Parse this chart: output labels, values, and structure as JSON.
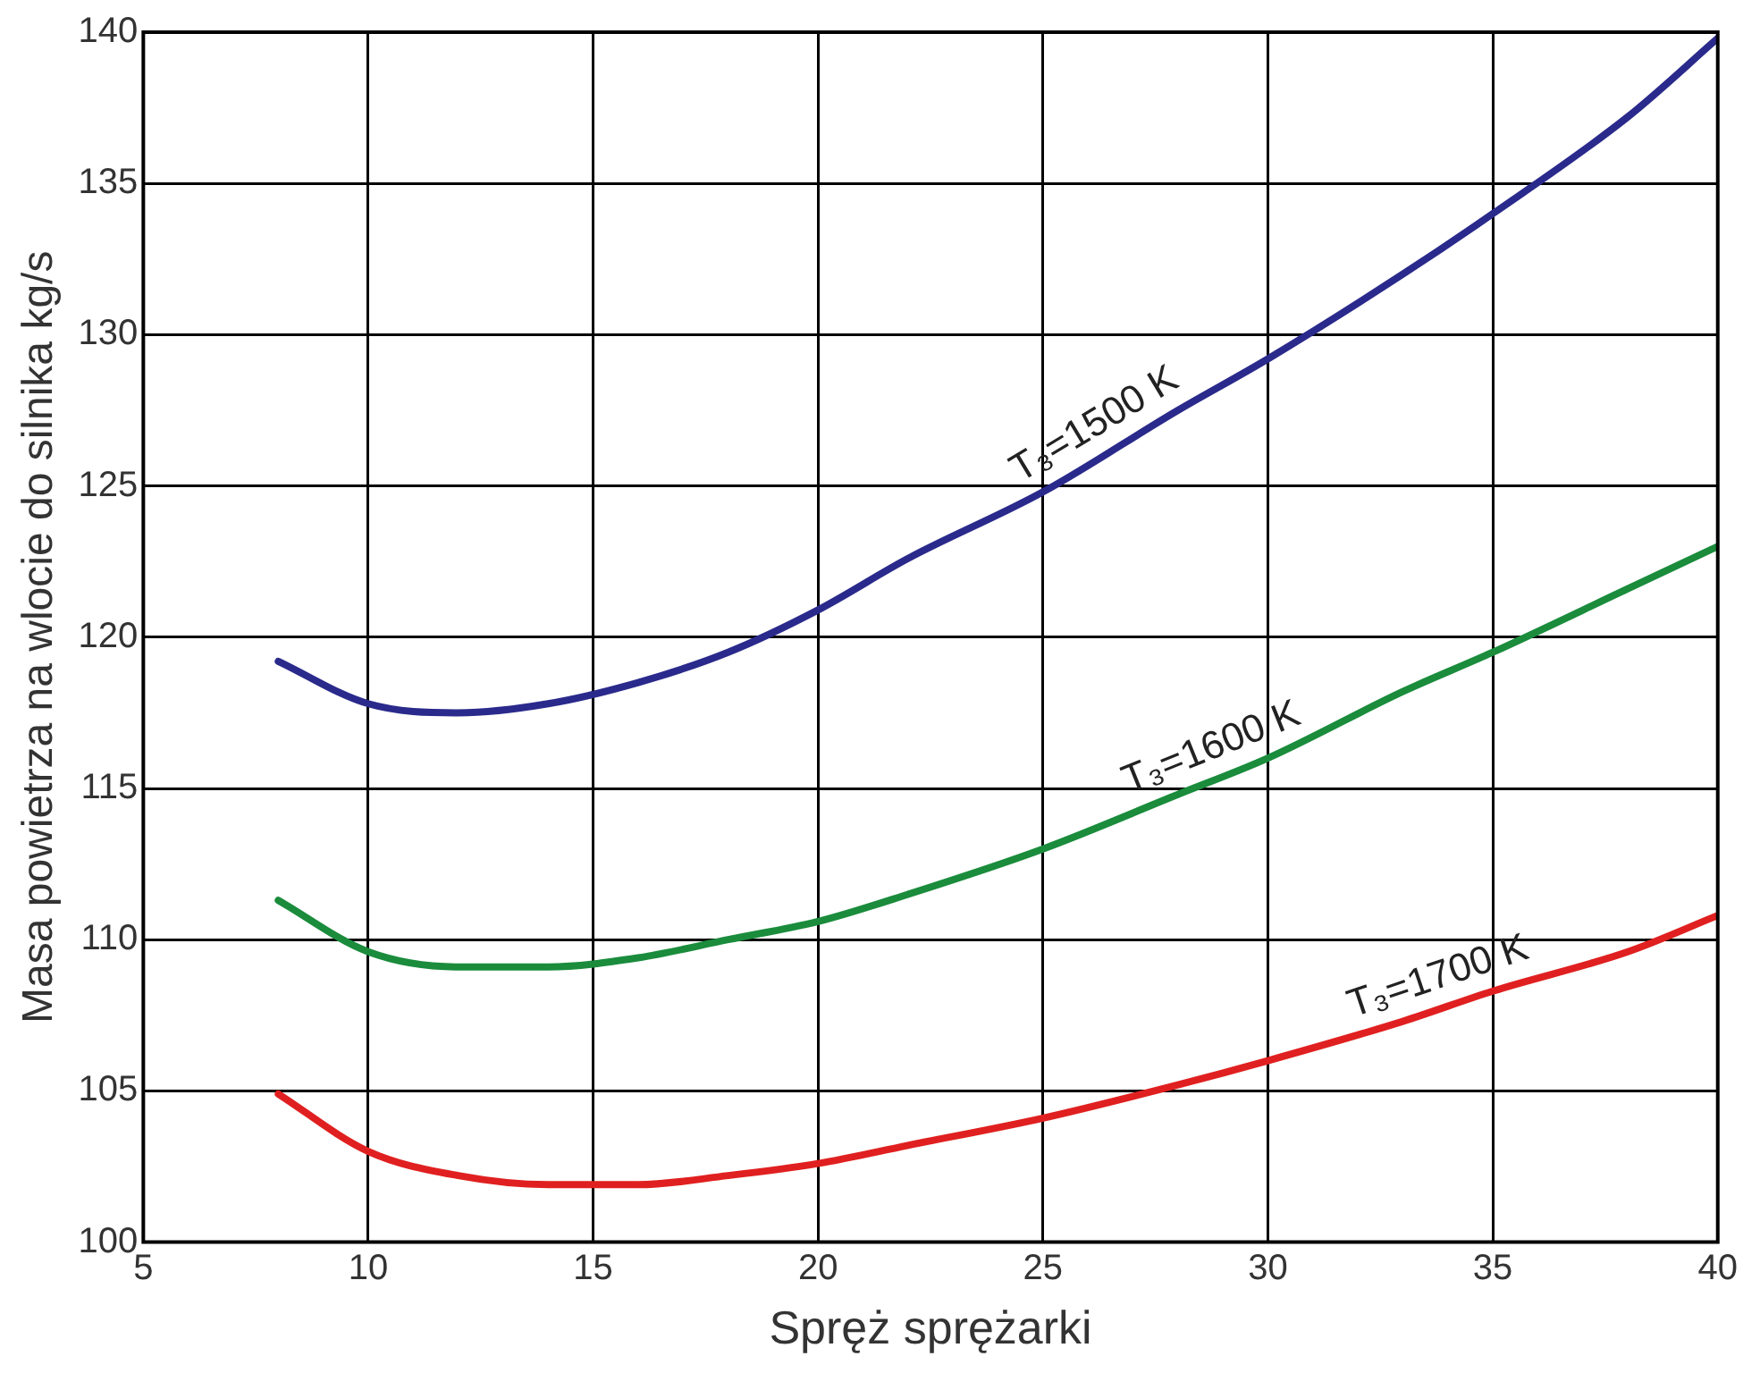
{
  "chart_data": {
    "type": "line",
    "xlabel": "Spręż sprężarki",
    "ylabel": "Masa powietrza na wlocie do silnika kg/s",
    "xlim": [
      5,
      40
    ],
    "xticks": [
      5,
      10,
      15,
      20,
      25,
      30,
      35,
      40
    ],
    "ylim": [
      100,
      140
    ],
    "yticks": [
      100,
      105,
      110,
      115,
      120,
      125,
      130,
      135,
      140
    ],
    "grid": true,
    "legend": false,
    "marker": "none",
    "line_style": "solid",
    "x": [
      8,
      10,
      12,
      14,
      16,
      18,
      20,
      22,
      25,
      28,
      30,
      33,
      35,
      38,
      40
    ],
    "series": [
      {
        "name": "T₃=1500 K",
        "color": "#2a2a8c",
        "values": [
          119.2,
          117.8,
          117.5,
          117.8,
          118.5,
          119.5,
          120.9,
          122.6,
          124.8,
          127.5,
          129.2,
          132,
          134,
          137.2,
          139.8
        ]
      },
      {
        "name": "T₃=1600 K",
        "color": "#1a8c3c",
        "values": [
          111.3,
          109.6,
          109.1,
          109.1,
          109.4,
          110,
          110.6,
          111.5,
          113,
          114.8,
          116,
          118.2,
          119.5,
          121.6,
          123
        ]
      },
      {
        "name": "T₃=1700 K",
        "color": "#e02020",
        "values": [
          104.9,
          103,
          102.2,
          101.9,
          101.9,
          102.2,
          102.6,
          103.2,
          104.1,
          105.2,
          106,
          107.3,
          108.3,
          109.6,
          110.8
        ]
      }
    ]
  }
}
